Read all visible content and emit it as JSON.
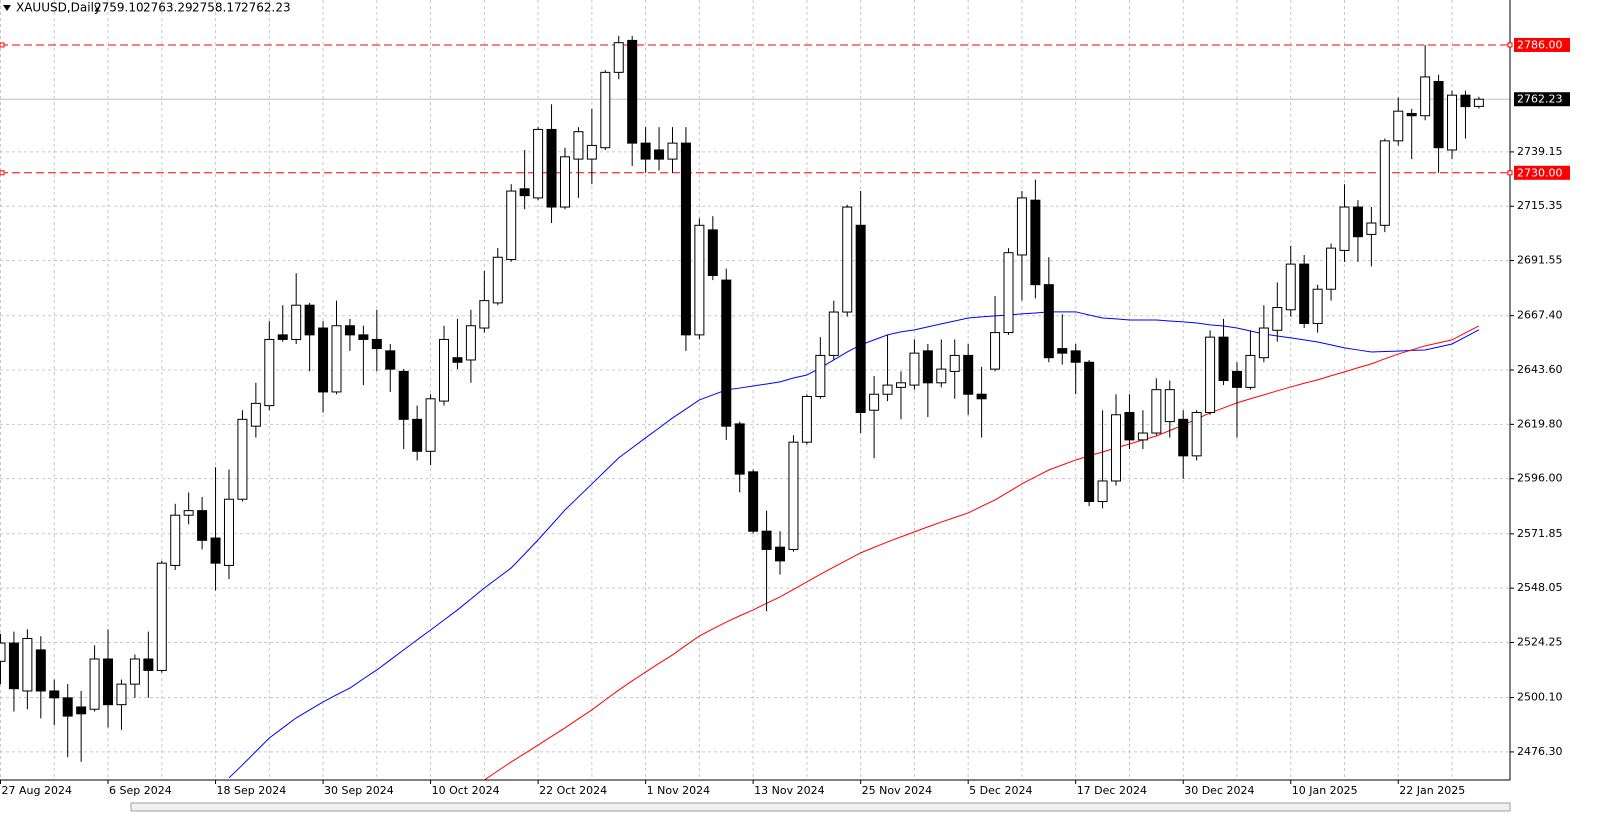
{
  "chart_data": {
    "type": "candlestick",
    "title": "XAUUSD,Daily",
    "header_ohlc": [
      "2759.10",
      "2763.29",
      "2758.17",
      "2762.23"
    ],
    "categories": [
      "27 Aug 2024",
      null,
      null,
      null,
      null,
      null,
      null,
      null,
      "6 Sep 2024",
      null,
      null,
      null,
      null,
      null,
      null,
      null,
      "18 Sep 2024",
      null,
      null,
      null,
      null,
      null,
      null,
      null,
      "30 Sep 2024",
      null,
      null,
      null,
      null,
      null,
      null,
      null,
      "10 Oct 2024",
      null,
      null,
      null,
      null,
      null,
      null,
      null,
      "22 Oct 2024",
      null,
      null,
      null,
      null,
      null,
      null,
      null,
      "1 Nov 2024",
      null,
      null,
      null,
      null,
      null,
      null,
      null,
      "13 Nov 2024",
      null,
      null,
      null,
      null,
      null,
      null,
      null,
      "25 Nov 2024",
      null,
      null,
      null,
      null,
      null,
      null,
      null,
      "5 Dec 2024",
      null,
      null,
      null,
      null,
      null,
      null,
      null,
      "17 Dec 2024",
      null,
      null,
      null,
      null,
      null,
      null,
      null,
      "30 Dec 2024",
      null,
      null,
      null,
      null,
      null,
      null,
      null,
      "10 Jan 2025",
      null,
      null,
      null,
      null,
      null,
      null,
      null,
      "22 Jan 2025",
      null,
      null,
      null,
      null,
      null,
      null
    ],
    "open": [
      2516,
      2524,
      2503,
      2521,
      2503,
      2500,
      2496,
      2495,
      2517,
      2497,
      2506,
      2517,
      2512,
      2558,
      2580,
      2582,
      2570,
      2558,
      2587,
      2619,
      2628,
      2659,
      2657,
      2672,
      2662,
      2634,
      2663,
      2659,
      2657,
      2652,
      2643,
      2622,
      2608,
      2630,
      2649,
      2648,
      2662,
      2673,
      2692,
      2723,
      2719,
      2749,
      2715,
      2736,
      2736,
      2741,
      2774,
      2788,
      2743,
      2740,
      2736,
      2743,
      2659,
      2705,
      2683,
      2620,
      2599,
      2573,
      2566,
      2565,
      2612,
      2632,
      2650,
      2669,
      2707,
      2626,
      2633,
      2636,
      2637,
      2652,
      2638,
      2643,
      2650,
      2633,
      2644,
      2660,
      2694,
      2718,
      2681,
      2653,
      2652,
      2647,
      2586,
      2595,
      2625,
      2613,
      2616,
      2621,
      2622,
      2606,
      2625,
      2658,
      2643,
      2636,
      2649,
      2661,
      2670,
      2690,
      2664,
      2679,
      2696,
      2715,
      2703,
      2707,
      2744,
      2756,
      2755,
      2770,
      2740,
      2764,
      2759.1
    ],
    "high": [
      2528,
      2529,
      2530,
      2527,
      2508,
      2506,
      2503,
      2523,
      2530,
      2508,
      2519,
      2529,
      2560,
      2585,
      2590,
      2588,
      2601,
      2600,
      2626,
      2638,
      2665,
      2672,
      2686,
      2673,
      2665,
      2674,
      2666,
      2663,
      2670,
      2655,
      2644,
      2628,
      2633,
      2663,
      2666,
      2670,
      2687,
      2697,
      2725,
      2740,
      2750,
      2760,
      2741,
      2750,
      2758,
      2775,
      2790,
      2790,
      2750,
      2750,
      2750,
      2750,
      2710,
      2711,
      2688,
      2621,
      2600,
      2582,
      2573,
      2615,
      2633,
      2658,
      2674,
      2716,
      2722,
      2641,
      2659,
      2643,
      2657,
      2655,
      2657,
      2657,
      2655,
      2645,
      2676,
      2697,
      2722,
      2727,
      2693,
      2668,
      2655,
      2648,
      2626,
      2633,
      2633,
      2626,
      2640,
      2639,
      2626,
      2626,
      2661,
      2666,
      2647,
      2661,
      2672,
      2682,
      2698,
      2694,
      2681,
      2699,
      2725,
      2718,
      2715,
      2745,
      2763,
      2758,
      2786,
      2773,
      2766,
      2766,
      2763.29
    ],
    "low": [
      2506,
      2494,
      2495,
      2491,
      2488,
      2474,
      2472,
      2494,
      2487,
      2486,
      2500,
      2500,
      2511,
      2556,
      2576,
      2565,
      2547,
      2552,
      2586,
      2614,
      2626,
      2656,
      2655,
      2643,
      2625,
      2633,
      2652,
      2637,
      2643,
      2634,
      2609,
      2604,
      2602,
      2628,
      2644,
      2638,
      2660,
      2672,
      2691,
      2714,
      2718,
      2708,
      2714,
      2719,
      2725,
      2740,
      2771,
      2733,
      2730,
      2731,
      2730,
      2652,
      2657,
      2683,
      2613,
      2590,
      2572,
      2538,
      2554,
      2564,
      2611,
      2631,
      2648,
      2667,
      2616,
      2605,
      2630,
      2622,
      2635,
      2623,
      2636,
      2631,
      2624,
      2614,
      2643,
      2659,
      2674,
      2675,
      2647,
      2646,
      2633,
      2584,
      2583,
      2593,
      2609,
      2609,
      2615,
      2614,
      2596,
      2604,
      2624,
      2637,
      2614,
      2635,
      2647,
      2656,
      2667,
      2662,
      2660,
      2674,
      2691,
      2691,
      2689,
      2704,
      2742,
      2736,
      2753,
      2730,
      2736,
      2745,
      2758.17
    ],
    "close": [
      2524,
      2504,
      2526,
      2503,
      2500,
      2492,
      2493,
      2517,
      2497,
      2506,
      2517,
      2512,
      2559,
      2580,
      2582,
      2569,
      2559,
      2587,
      2622,
      2629,
      2657,
      2657,
      2672,
      2659,
      2634,
      2663,
      2659,
      2657,
      2653,
      2644,
      2622,
      2608,
      2631,
      2657,
      2647,
      2663,
      2674,
      2693,
      2722,
      2720,
      2749,
      2715,
      2737,
      2748,
      2742,
      2774,
      2787,
      2743,
      2736,
      2736,
      2743,
      2659,
      2707,
      2685,
      2619,
      2598,
      2573,
      2565,
      2560,
      2612,
      2632,
      2650,
      2669,
      2715,
      2625,
      2633,
      2637,
      2638,
      2651,
      2638,
      2644,
      2650,
      2633,
      2631,
      2660,
      2695,
      2719,
      2681,
      2649,
      2651,
      2647,
      2586,
      2595,
      2624,
      2613,
      2616,
      2635,
      2635,
      2606,
      2625,
      2658,
      2639,
      2636,
      2650,
      2662,
      2671,
      2690,
      2664,
      2679,
      2697,
      2715,
      2702,
      2708,
      2744,
      2757,
      2755,
      2772,
      2741,
      2764,
      2759,
      2762.23
    ],
    "up_color": "#ffffff",
    "down_color": "#000000",
    "series": [
      {
        "color": "#0000ff",
        "values": [
          null,
          null,
          null,
          null,
          null,
          null,
          null,
          null,
          null,
          null,
          null,
          null,
          null,
          null,
          null,
          null,
          null,
          2464.9,
          2470.6,
          2476.5,
          2482.4,
          2486.8,
          2491.2,
          2494.7,
          2498.2,
          2501.3,
          2504.3,
          2508.3,
          2512.2,
          2516.6,
          2521.0,
          2525.4,
          2529.7,
          2534.1,
          2538.5,
          2543.3,
          2548.1,
          2552.5,
          2556.9,
          2563.0,
          2569.2,
          2575.7,
          2582.3,
          2588.0,
          2593.7,
          2599.4,
          2605.1,
          2609.5,
          2613.9,
          2618.2,
          2622.6,
          2626.5,
          2630.5,
          2632.7,
          2634.9,
          2635.7,
          2636.6,
          2637.5,
          2638.4,
          2640.1,
          2641.4,
          2644.5,
          2648.0,
          2651.5,
          2654.6,
          2656.8,
          2659.0,
          2660.3,
          2661.2,
          2662.5,
          2663.8,
          2665.1,
          2666.4,
          2666.9,
          2667.3,
          2667.7,
          2668.2,
          2668.6,
          2669.1,
          2669.1,
          2669.1,
          2667.7,
          2666.4,
          2666.0,
          2665.5,
          2665.5,
          2665.5,
          2665.1,
          2664.7,
          2664.2,
          2663.4,
          2662.9,
          2662.0,
          2660.7,
          2659.4,
          2658.5,
          2657.7,
          2656.8,
          2655.9,
          2654.6,
          2653.3,
          2652.4,
          2651.5,
          2651.7,
          2651.9,
          2652.2,
          2652.4,
          2653.7,
          2655.0,
          2658.1,
          2661.2
        ]
      },
      {
        "color": "#ff0000",
        "values": [
          null,
          null,
          null,
          null,
          null,
          null,
          null,
          null,
          null,
          null,
          null,
          null,
          null,
          null,
          null,
          null,
          null,
          null,
          null,
          null,
          null,
          null,
          null,
          null,
          null,
          null,
          null,
          null,
          null,
          null,
          null,
          null,
          null,
          null,
          null,
          null,
          2464.0,
          2468.0,
          2471.9,
          2475.6,
          2479.3,
          2483.1,
          2486.8,
          2490.8,
          2494.7,
          2499.1,
          2503.4,
          2507.4,
          2511.3,
          2515.1,
          2518.8,
          2523.0,
          2527.1,
          2530.2,
          2533.2,
          2535.9,
          2538.5,
          2541.4,
          2544.2,
          2547.5,
          2550.8,
          2554.1,
          2557.3,
          2560.4,
          2563.5,
          2565.9,
          2568.3,
          2570.5,
          2572.7,
          2574.9,
          2577.0,
          2579.0,
          2581.0,
          2583.9,
          2586.7,
          2590.2,
          2593.7,
          2596.8,
          2599.8,
          2602.0,
          2604.2,
          2606.0,
          2607.7,
          2609.5,
          2611.2,
          2613.0,
          2614.7,
          2617.1,
          2619.5,
          2622.2,
          2624.8,
          2627.0,
          2629.2,
          2631.0,
          2632.7,
          2634.5,
          2636.2,
          2637.8,
          2639.3,
          2641.1,
          2642.8,
          2644.6,
          2646.3,
          2648.5,
          2650.6,
          2652.4,
          2654.2,
          2655.5,
          2656.8,
          2659.9,
          2662.9
        ]
      }
    ],
    "ylim": [
      2464.0,
      2805.7
    ],
    "yticks": [
      2739.15,
      2715.35,
      2691.55,
      {
        "value": 2667.4,
        "label": "2667.40"
      },
      {
        "value": 2643.6,
        "label": "2643.60"
      },
      {
        "value": 2619.8,
        "label": "2619.80"
      },
      {
        "value": 2596,
        "label": "2596.00"
      },
      2571.85,
      2548.05,
      2524.25,
      {
        "value": 2500.1,
        "label": "2500.10"
      },
      {
        "value": 2476.3,
        "label": "2476.30"
      }
    ],
    "hlines": [
      {
        "value": 2786,
        "label": "2786.00",
        "color": "#ff0000",
        "dashed": true,
        "label_bg": "#ff0000"
      },
      {
        "value": 2762.23,
        "label": "2762.23",
        "color": "#c0c0c0",
        "dashed": false,
        "label_bg": "#000000"
      },
      {
        "value": 2730,
        "label": "2730.00",
        "color": "#ff0000",
        "dashed": true,
        "label_bg": "#ff0000"
      }
    ],
    "grid": true
  }
}
